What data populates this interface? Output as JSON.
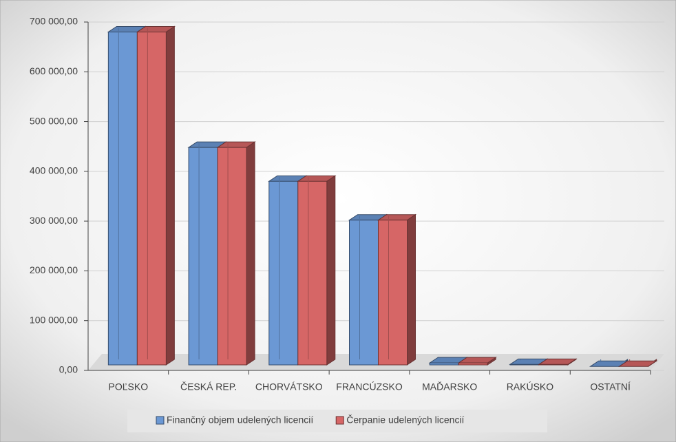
{
  "chart_data": {
    "type": "bar3d",
    "categories": [
      "POĽSKO",
      "ČESKÁ REP.",
      "CHORVÁTSKO",
      "FRANCÚZSKO",
      "MAĎARSKO",
      "RAKÚSKO",
      "OSTATNÍ"
    ],
    "series": [
      {
        "name": "Finančný objem udelených licencií",
        "color": "#6b98d4",
        "values": [
          680000,
          448000,
          380000,
          302000,
          15000,
          12000,
          8000
        ]
      },
      {
        "name": "Čerpanie udelených licencií",
        "color": "#d66666",
        "values": [
          680000,
          448000,
          380000,
          302000,
          15000,
          12000,
          8000
        ]
      }
    ],
    "ylim": [
      0,
      700000
    ],
    "yticks": [
      {
        "value": 0,
        "label": "0,00"
      },
      {
        "value": 100000,
        "label": "100 000,00"
      },
      {
        "value": 200000,
        "label": "200 000,00"
      },
      {
        "value": 300000,
        "label": "300 000,00"
      },
      {
        "value": 400000,
        "label": "400 000,00"
      },
      {
        "value": 500000,
        "label": "500 000,00"
      },
      {
        "value": 600000,
        "label": "600 000,00"
      },
      {
        "value": 700000,
        "label": "700 000,00"
      }
    ],
    "grid": true,
    "legend": "bottom"
  }
}
